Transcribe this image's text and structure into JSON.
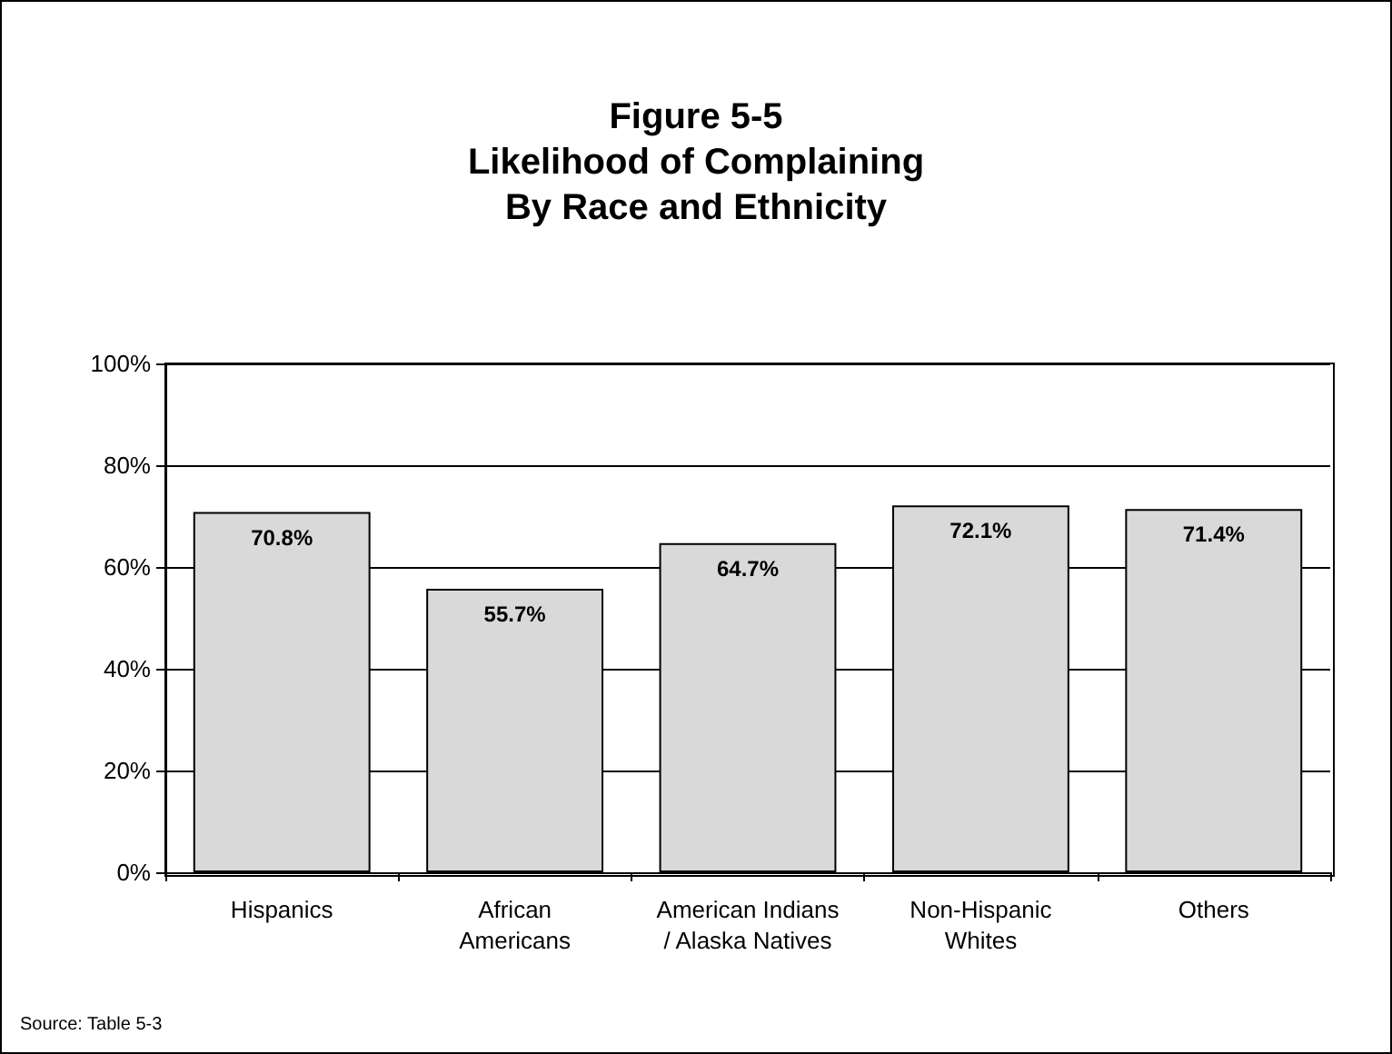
{
  "chart_data": {
    "type": "bar",
    "title": "Figure 5-5\nLikelihood of Complaining\nBy Race and Ethnicity",
    "categories": [
      "Hispanics",
      "African\nAmericans",
      "American Indians\n/ Alaska Natives",
      "Non-Hispanic\nWhites",
      "Others"
    ],
    "values": [
      70.8,
      55.7,
      64.7,
      72.1,
      71.4
    ],
    "value_labels": [
      "70.8%",
      "55.7%",
      "64.7%",
      "72.1%",
      "71.4%"
    ],
    "color": "#d9d9d9",
    "ylim": [
      0,
      100
    ],
    "yticks": [
      {
        "value": 0,
        "label": "0%"
      },
      {
        "value": 20,
        "label": "20%"
      },
      {
        "value": 40,
        "label": "40%"
      },
      {
        "value": 60,
        "label": "60%"
      },
      {
        "value": 80,
        "label": "80%"
      },
      {
        "value": 100,
        "label": "100%"
      }
    ],
    "grid": "y",
    "annotations": [
      "Source: Table 5-3"
    ]
  }
}
